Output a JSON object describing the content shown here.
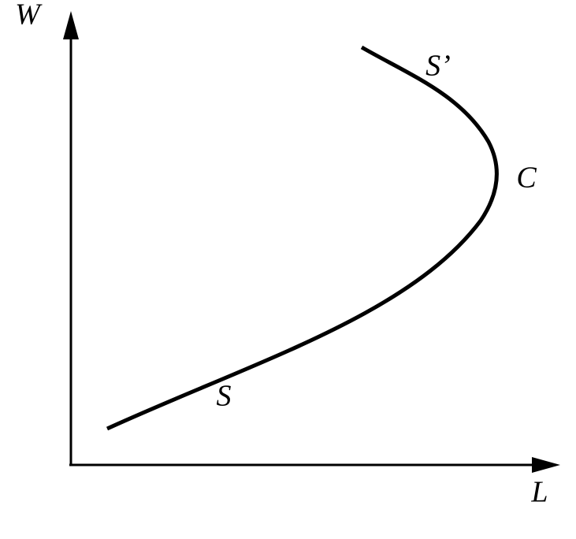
{
  "axes": {
    "y_label": "W",
    "x_label": "L"
  },
  "curve": {
    "labels": {
      "lower": "S",
      "upper": "S’",
      "turn": "C"
    }
  }
}
